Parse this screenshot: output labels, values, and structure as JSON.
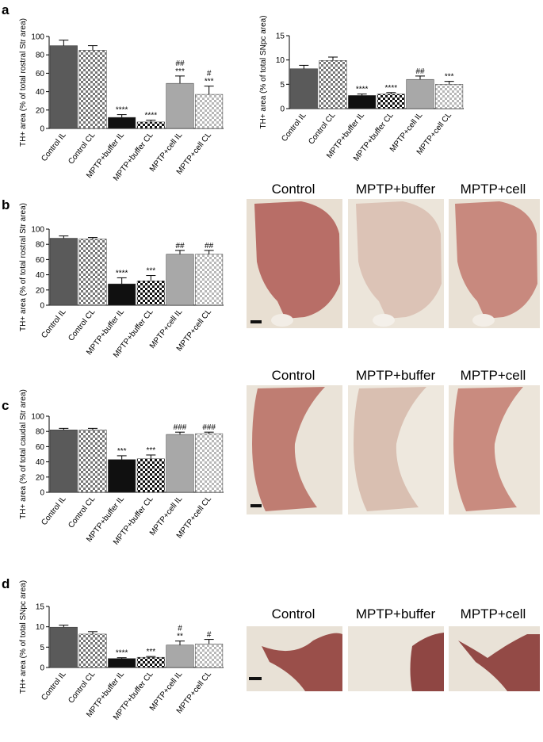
{
  "figure": {
    "panel_labels": [
      "a",
      "b",
      "c",
      "d"
    ],
    "column_titles": [
      "Control",
      "MPTP+buffer",
      "MPTP+cell"
    ]
  },
  "colors": {
    "control_solid": "#5a5a5a",
    "control_hatch": "#8a8a8a",
    "buffer_solid": "#101010",
    "buffer_hatch": "#2a2a2a",
    "cell_solid": "#a8a8a8",
    "cell_hatch": "#c2c2c2",
    "tissue_bg": "#e6ddd0",
    "tissue_stain": "#b0665e"
  },
  "chart_data": [
    {
      "id": "a1",
      "panel": "a",
      "type": "bar",
      "ylabel": "TH+ area (% of total rostral Str area)",
      "ylim": [
        0,
        100
      ],
      "yticks": [
        0,
        20,
        40,
        60,
        80,
        100
      ],
      "categories": [
        "Control IL",
        "Control CL",
        "MPTP+buffer IL",
        "MPTP+buffer CL",
        "MPTP+cell IL",
        "MPTP+cell CL"
      ],
      "values": [
        90,
        85,
        12,
        7,
        49,
        37
      ],
      "errors": [
        6,
        5,
        3,
        2,
        8,
        9
      ],
      "annotations": [
        [],
        [],
        [
          "****"
        ],
        [
          "****"
        ],
        [
          "##",
          "***"
        ],
        [
          "#",
          "***"
        ]
      ]
    },
    {
      "id": "a2",
      "panel": "a",
      "type": "bar",
      "ylabel": "TH+ area (% of total SNpc area)",
      "ylim": [
        0,
        15
      ],
      "yticks": [
        0,
        5,
        10,
        15
      ],
      "categories": [
        "Control IL",
        "Control CL",
        "MPTP+buffer IL",
        "MPTP+buffer CL",
        "MPTP+cell IL",
        "MPTP+cell CL"
      ],
      "values": [
        8.2,
        9.9,
        2.7,
        3.0,
        6.0,
        5.0
      ],
      "errors": [
        0.7,
        0.7,
        0.3,
        0.3,
        0.7,
        0.6
      ],
      "annotations": [
        [],
        [],
        [
          "****"
        ],
        [
          "****"
        ],
        [
          "##"
        ],
        [
          "***"
        ]
      ]
    },
    {
      "id": "b",
      "panel": "b",
      "type": "bar",
      "ylabel": "TH+ area (% of total rostral Str area)",
      "ylim": [
        0,
        100
      ],
      "yticks": [
        0,
        20,
        40,
        60,
        80,
        100
      ],
      "categories": [
        "Control IL",
        "Control CL",
        "MPTP+buffer IL",
        "MPTP+buffer CL",
        "MPTP+cell IL",
        "MPTP+cell CL"
      ],
      "values": [
        88,
        87,
        28,
        32,
        67,
        67
      ],
      "errors": [
        3,
        2,
        8,
        7,
        5,
        5
      ],
      "annotations": [
        [],
        [],
        [
          "****"
        ],
        [
          "***"
        ],
        [
          "##"
        ],
        [
          "##"
        ]
      ]
    },
    {
      "id": "c",
      "panel": "c",
      "type": "bar",
      "ylabel": "TH+ area (% of total caudal Str area)",
      "ylim": [
        0,
        100
      ],
      "yticks": [
        0,
        20,
        40,
        60,
        80,
        100
      ],
      "categories": [
        "Control IL",
        "Control CL",
        "MPTP+buffer IL",
        "MPTP+buffer CL",
        "MPTP+cell IL",
        "MPTP+cell CL"
      ],
      "values": [
        82,
        82,
        43,
        44,
        76,
        77
      ],
      "errors": [
        2,
        2,
        5,
        5,
        3,
        2
      ],
      "annotations": [
        [],
        [],
        [
          "***"
        ],
        [
          "***"
        ],
        [
          "###"
        ],
        [
          "###"
        ]
      ]
    },
    {
      "id": "d",
      "panel": "d",
      "type": "bar",
      "ylabel": "TH+ area (% of total SNpc area)",
      "ylim": [
        0,
        15
      ],
      "yticks": [
        0,
        5,
        10,
        15
      ],
      "categories": [
        "Control IL",
        "Control CL",
        "MPTP+buffer IL",
        "MPTP+buffer CL",
        "MPTP+cell IL",
        "MPTP+cell CL"
      ],
      "values": [
        9.9,
        8.2,
        2.2,
        2.5,
        5.5,
        5.8
      ],
      "errors": [
        0.5,
        0.6,
        0.2,
        0.2,
        1.0,
        1.1
      ],
      "annotations": [
        [],
        [],
        [
          "****"
        ],
        [
          "***"
        ],
        [
          "#",
          "**"
        ],
        [
          "#"
        ]
      ]
    }
  ]
}
